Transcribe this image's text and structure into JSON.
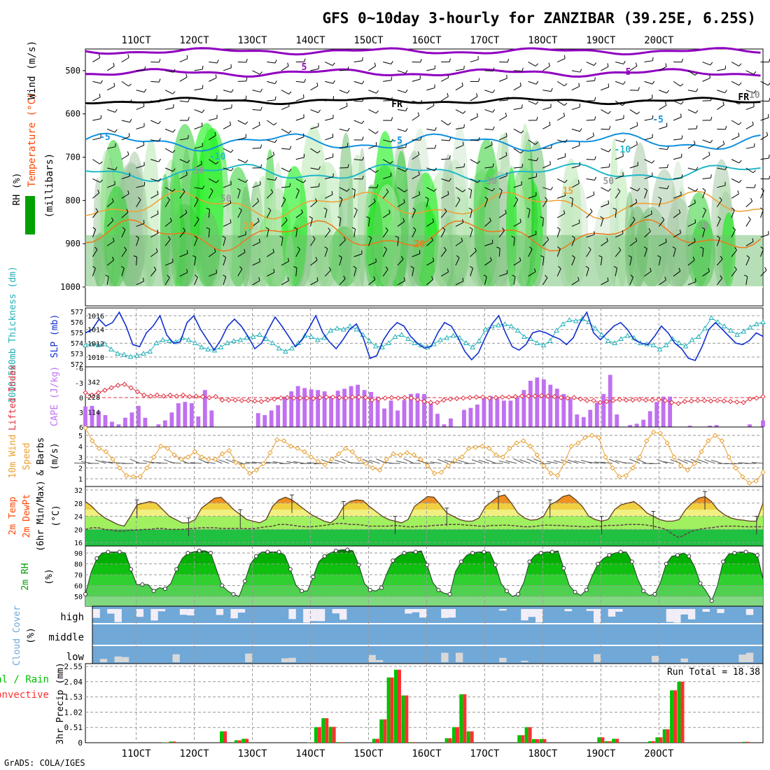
{
  "title": "GFS 0~10day 3-hourly for ZANZIBAR (39.25E, 6.25S)",
  "credit": "GrADS: COLA/IGES",
  "colors": {
    "axis": "#000000",
    "grid": "#9a9a9a",
    "temp_label": "#ff4400",
    "wind_label": "#ffa500",
    "rh_label": "#00a000",
    "slp": "#1030d0",
    "thickness": "#20b0b8",
    "lifted": "#e03040",
    "cape": "#c070f0",
    "wind_speed": "#e8a030",
    "cloud": "#70a8d8",
    "precip_total": "#00c000",
    "precip_conv": "#ff3030",
    "rh_dark": "#00a000",
    "rh_light": "#b8e8b0",
    "purple": "#9000c0",
    "iso_blue": "#1090e0",
    "iso_cyan": "#20b8c8",
    "iso_orange": "#f0a030",
    "iso_orange2": "#f07818",
    "magenta": "#e0208a"
  },
  "time_labels": [
    "11OCT",
    "12OCT",
    "13OCT",
    "14OCT",
    "15OCT",
    "16OCT",
    "17OCT",
    "18OCT",
    "19OCT",
    "20OCT"
  ],
  "chart_data": [
    {
      "name": "upper-air",
      "type": "heatmap",
      "ylabel": "(millibars)",
      "side_labels": {
        "rh": "RH (%)",
        "temperature": "Temperature (°C)",
        "wind": "Wind (m/s)"
      },
      "yticks": [
        500,
        600,
        700,
        800,
        900,
        1000
      ],
      "ylim": [
        450,
        1000
      ],
      "contour_labels": [
        "5",
        "5",
        "FR",
        "FR",
        "-5",
        "-5",
        "-5",
        "-10",
        "-10",
        "10",
        "15",
        "20",
        "50",
        "50",
        "30",
        "30",
        "30",
        "10"
      ]
    },
    {
      "name": "slp-thickness",
      "type": "line",
      "ylabel_left": "1000-500mb Thickness (dm)",
      "ylabel_right": "SLP (mb)",
      "left_ticks": [
        "577",
        "576",
        "575",
        "574",
        "573",
        "572"
      ],
      "right_ticks": [
        "1016",
        "1014",
        "1012",
        "1010"
      ],
      "slp": [
        1013.5,
        1014.0,
        1015.5,
        1014.5,
        1015.0,
        1016.5,
        1014.5,
        1011.8,
        1011.5,
        1013.5,
        1014.5,
        1016.0,
        1013.2,
        1012.0,
        1012.2,
        1015.0,
        1016.0,
        1014.0,
        1012.5,
        1011.0,
        1012.5,
        1014.5,
        1015.5,
        1014.5,
        1013.0,
        1011.2,
        1012.0,
        1014.0,
        1015.8,
        1014.5,
        1013.0,
        1011.5,
        1012.5,
        1014.2,
        1016.0,
        1013.6,
        1012.2,
        1011.2,
        1012.5,
        1014.0,
        1014.8,
        1012.8,
        1009.8,
        1010.2,
        1012.5,
        1014.0,
        1015.0,
        1014.5,
        1013.0,
        1012.0,
        1011.3,
        1011.5,
        1013.5,
        1015.0,
        1014.5,
        1012.8,
        1010.8,
        1009.6,
        1010.6,
        1012.8,
        1014.8,
        1016.0,
        1013.5,
        1011.5,
        1011.0,
        1011.8,
        1013.5,
        1013.8,
        1013.5,
        1013.0,
        1012.6,
        1011.8,
        1012.8,
        1015.0,
        1016.5,
        1013.5,
        1012.5,
        1013.5,
        1014.5,
        1015.0,
        1014.0,
        1012.5,
        1012.0,
        1011.8,
        1013.0,
        1014.5,
        1013.5,
        1012.0,
        1011.2,
        1009.8,
        1009.5,
        1011.5,
        1014.0,
        1015.0,
        1014.0,
        1013.0,
        1012.0,
        1011.8,
        1012.4,
        1013.5,
        1013.0
      ],
      "thickness": [
        573.8,
        573.9,
        573.8,
        573.9,
        573.4,
        573.0,
        572.9,
        572.7,
        572.8,
        573.0,
        573.2,
        574.0,
        574.3,
        574.2,
        574.1,
        574.5,
        574.3,
        574.0,
        573.6,
        573.4,
        573.3,
        573.6,
        574.0,
        574.2,
        574.3,
        574.5,
        574.6,
        574.8,
        574.4,
        574.0,
        573.5,
        573.2,
        573.5,
        574.0,
        574.7,
        574.6,
        574.3,
        574.5,
        575.2,
        575.4,
        575.3,
        575.6,
        575.3,
        574.8,
        574.2,
        573.7,
        573.6,
        574.0,
        574.6,
        574.8,
        574.4,
        574.0,
        573.8,
        573.6,
        573.9,
        574.3,
        574.5,
        574.7,
        574.5,
        574.0,
        573.6,
        574.2,
        575.3,
        575.6,
        575.7,
        575.8,
        575.6,
        575.2,
        574.6,
        574.4,
        574.0,
        573.8,
        574.2,
        575.2,
        575.8,
        576.2,
        576.1,
        576.3,
        576.0,
        575.4,
        574.8,
        574.2,
        574.0,
        574.4,
        574.7,
        574.5,
        574.0,
        573.9,
        573.8,
        573.4,
        573.8,
        574.4,
        574.0,
        573.7,
        574.3,
        574.6,
        575.4,
        576.4,
        576.0,
        575.6,
        575.2,
        574.8,
        575.1,
        575.5,
        575.8,
        576.0
      ]
    },
    {
      "name": "lifted-cape",
      "type": "bar",
      "ylabel_left": "Lifted Index",
      "ylabel_right": "CAPE (J/kg)",
      "left_ticks": [
        "-6",
        "-3",
        "0",
        "3",
        "6"
      ],
      "right_ticks": [
        "342",
        "228",
        "114"
      ],
      "cape": [
        155,
        160,
        120,
        90,
        40,
        20,
        70,
        110,
        160,
        70,
        0,
        20,
        50,
        110,
        180,
        190,
        180,
        80,
        280,
        125,
        0,
        0,
        0,
        0,
        0,
        0,
        105,
        90,
        125,
        165,
        230,
        270,
        310,
        295,
        285,
        280,
        270,
        235,
        275,
        290,
        310,
        320,
        280,
        265,
        230,
        140,
        200,
        125,
        205,
        250,
        255,
        250,
        190,
        100,
        20,
        65,
        0,
        130,
        145,
        170,
        220,
        235,
        220,
        200,
        200,
        225,
        280,
        350,
        375,
        360,
        320,
        290,
        250,
        215,
        95,
        75,
        130,
        185,
        250,
        395,
        95,
        0,
        15,
        25,
        55,
        120,
        190,
        230,
        230,
        0,
        0,
        10,
        0,
        0,
        10,
        15,
        0,
        0,
        0,
        0,
        20,
        0,
        50
      ],
      "lifted": [
        -1.0,
        -0.5,
        -1.0,
        -1.5,
        -2.0,
        -2.5,
        -2.7,
        -2.0,
        -1.2,
        -0.5,
        -0.3,
        -0.5,
        -0.3,
        -0.5,
        -0.3,
        -0.5,
        -0.2,
        -0.3,
        -0.2,
        0.0,
        -0.2,
        0.5,
        0.5,
        0.5,
        0.6,
        0.6,
        0.7,
        0.8,
        0.5,
        0.3,
        0.1,
        0.0,
        0.1,
        0.1,
        0.1,
        0.2,
        0.0,
        -0.1,
        -0.1,
        0.0,
        0.1,
        -0.1,
        -0.1,
        0.0,
        0.5,
        0.3,
        0.1,
        0.0,
        0.1,
        0.0,
        0.1,
        0.4,
        0.8,
        1.0,
        1.0,
        0.5,
        0.3,
        0.2,
        0.1,
        0.0,
        -0.1,
        -0.1,
        0.1,
        0.0,
        -0.1,
        -0.1,
        -0.2,
        -0.3,
        -0.3,
        -0.3,
        -0.4,
        -0.3,
        -0.2,
        0.0,
        0.1,
        0.0,
        0.3,
        0.6,
        0.6,
        1.0,
        0.8,
        0.6,
        0.4,
        0.5,
        0.5,
        0.4,
        0.5,
        0.5,
        0.4,
        0.6,
        1.0,
        1.2,
        0.8,
        0.7,
        0.6,
        0.6,
        0.7,
        0.6,
        0.7,
        0.8,
        0.9,
        1.0,
        0.3,
        0.1,
        -0.2
      ]
    },
    {
      "name": "wind-10m",
      "type": "line",
      "ylabel": "10m Wind Speed & Barbs (m/s)",
      "ticks": [
        "5",
        "4",
        "3",
        "2",
        "1"
      ],
      "values": [
        5.7,
        4.5,
        3.8,
        3.5,
        2.8,
        2.0,
        1.3,
        1.2,
        1.2,
        2.0,
        3.0,
        4.0,
        3.8,
        3.2,
        2.8,
        3.0,
        3.5,
        3.0,
        2.8,
        2.8,
        3.3,
        3.6,
        2.5,
        2.2,
        1.5,
        1.8,
        2.4,
        3.4,
        4.6,
        4.5,
        4.0,
        3.8,
        3.5,
        3.0,
        2.6,
        2.3,
        2.8,
        3.3,
        3.8,
        3.5,
        2.8,
        2.4,
        2.0,
        1.8,
        2.8,
        3.3,
        3.2,
        3.4,
        3.2,
        2.8,
        2.2,
        1.5,
        1.6,
        2.2,
        2.7,
        3.0,
        3.8,
        3.9,
        4.0,
        3.8,
        3.2,
        3.0,
        3.8,
        4.3,
        4.5,
        4.0,
        3.2,
        2.2,
        1.5,
        1.3,
        2.5,
        4.0,
        4.3,
        4.8,
        5.0,
        4.8,
        3.0,
        2.0,
        1.2,
        1.3,
        2.0,
        3.0,
        4.5,
        5.3,
        5.2,
        4.3,
        3.0,
        2.2,
        1.8,
        2.4,
        3.5,
        4.5,
        5.0,
        4.5,
        3.0,
        2.0,
        1.2,
        0.6,
        0.8,
        1.6
      ]
    },
    {
      "name": "temperature-2m",
      "type": "area",
      "ylabel": "2m Temp 2m DewPt (6hr Min/Max) (°C)",
      "ticks": [
        "32",
        "28",
        "24",
        "20",
        "16"
      ],
      "temp": [
        28.5,
        27.0,
        25.0,
        23.5,
        22.5,
        21.5,
        21.0,
        24.0,
        27.5,
        28.0,
        28.5,
        28.0,
        26.0,
        24.0,
        23.0,
        22.0,
        22.0,
        23.0,
        26.5,
        28.0,
        29.5,
        29.8,
        28.0,
        26.0,
        24.5,
        23.0,
        22.5,
        22.0,
        23.0,
        27.0,
        29.0,
        29.8,
        29.0,
        27.5,
        26.0,
        24.5,
        23.5,
        22.5,
        22.0,
        23.5,
        27.0,
        28.5,
        29.0,
        28.8,
        27.0,
        25.5,
        24.0,
        23.0,
        22.5,
        22.0,
        23.0,
        27.0,
        28.5,
        30.0,
        29.8,
        27.5,
        25.0,
        24.0,
        23.0,
        22.5,
        22.5,
        23.5,
        27.0,
        28.5,
        30.0,
        30.5,
        28.0,
        25.0,
        23.5,
        22.8,
        23.0,
        24.0,
        27.5,
        28.5,
        30.0,
        30.5,
        29.0,
        27.0,
        24.0,
        23.0,
        22.5,
        23.0,
        26.0,
        27.5,
        28.0,
        28.5,
        27.0,
        25.0,
        24.0,
        23.0,
        22.5,
        22.5,
        23.0,
        26.0,
        28.0,
        29.5,
        30.0,
        28.5,
        26.0,
        24.5,
        23.5,
        23.0,
        22.8,
        22.5,
        22.5,
        28.0
      ],
      "dewpoint": [
        20.0,
        20.5,
        20.5,
        20.0,
        19.8,
        19.5,
        19.5,
        19.8,
        19.8,
        20.0,
        20.0,
        20.3,
        20.3,
        20.0,
        20.0,
        20.0,
        20.2,
        20.3,
        20.5,
        20.5,
        20.5,
        20.3,
        20.3,
        20.3,
        20.3,
        20.2,
        20.2,
        20.5,
        20.8,
        21.0,
        21.5,
        21.5,
        21.3,
        21.0,
        20.8,
        20.8,
        21.0,
        21.2,
        21.5,
        21.8,
        21.8,
        21.5,
        21.5,
        21.3,
        21.0,
        21.0,
        21.0,
        21.0,
        21.2,
        21.0,
        20.8,
        20.8,
        21.0,
        21.0,
        21.2,
        21.3,
        21.5,
        21.5,
        21.5,
        21.3,
        21.2,
        21.0,
        21.0,
        21.2,
        21.2,
        21.3,
        21.2,
        21.0,
        20.8,
        20.8,
        21.0,
        21.3,
        21.3,
        21.2,
        21.2,
        21.0,
        21.0,
        20.8,
        20.8,
        21.0,
        21.0,
        21.2,
        21.2,
        21.3,
        21.5,
        21.5,
        21.5,
        21.3,
        21.0,
        20.5,
        20.0,
        18.5,
        17.5,
        18.5,
        19.5,
        20.0,
        20.3,
        20.5,
        20.8,
        21.0,
        21.0,
        21.0,
        20.8,
        20.8,
        20.8,
        20.8
      ]
    },
    {
      "name": "rh-2m",
      "type": "area",
      "ylabel": "2m RH (%)",
      "ticks": [
        "90",
        "80",
        "70",
        "60",
        "50"
      ],
      "values": [
        52,
        72,
        85,
        90,
        91,
        91,
        91,
        90,
        75,
        61,
        61,
        61,
        55,
        58,
        57,
        62,
        75,
        85,
        90,
        91,
        92,
        92,
        90,
        75,
        60,
        55,
        52,
        50,
        64,
        80,
        87,
        91,
        91,
        91,
        91,
        88,
        75,
        60,
        55,
        55,
        68,
        82,
        87,
        90,
        92,
        93,
        93,
        92,
        79,
        62,
        56,
        55,
        58,
        72,
        83,
        87,
        90,
        91,
        91,
        92,
        79,
        63,
        56,
        53,
        52,
        73,
        82,
        88,
        90,
        91,
        91,
        91,
        79,
        62,
        55,
        50,
        52,
        63,
        82,
        88,
        90,
        91,
        91,
        92,
        76,
        60,
        54,
        51,
        56,
        69,
        80,
        85,
        88,
        90,
        91,
        91,
        82,
        66,
        55,
        51,
        52,
        63,
        80,
        87,
        88,
        90,
        87,
        77,
        62,
        55,
        46,
        60,
        82,
        89,
        90,
        91,
        91,
        90,
        88,
        66
      ]
    },
    {
      "name": "cloud-cover",
      "type": "bar",
      "ylabel": "Cloud Cover (%)",
      "levels": [
        "high",
        "middle",
        "low"
      ]
    },
    {
      "name": "precip-3hr",
      "type": "bar",
      "ylabel": "3hr Precip (mm)",
      "side_label_total": "Total / Rain",
      "side_label_conv": "Convective",
      "ticks": [
        "2.55",
        "2.04",
        "1.53",
        "1.02",
        "0.51",
        "0"
      ],
      "ylim": [
        0,
        2.55
      ],
      "run_total_label": "Run Total = 18.38",
      "values": [
        0,
        0,
        0,
        0,
        0,
        0,
        0,
        0,
        0,
        0.01,
        0.02,
        0,
        0,
        0,
        0,
        0,
        0,
        0.08,
        0.04,
        0,
        0.03,
        0,
        0,
        0,
        0,
        0,
        0,
        0,
        0,
        0,
        0,
        0,
        0.07,
        0.08,
        0,
        0,
        0.03,
        0,
        0,
        0,
        0.01,
        0.05,
        0.14,
        0.17,
        0.09,
        0.01,
        0,
        0,
        0,
        0,
        0,
        0,
        0.05,
        0.04,
        0.07,
        0.07,
        0.02,
        0,
        0,
        0,
        0,
        0,
        0,
        0,
        0,
        0,
        0.1,
        0.06,
        0.07,
        0.05,
        0.06,
        0.06,
        0,
        0,
        0,
        0,
        0,
        0,
        0,
        0,
        0,
        0.02,
        0.04,
        0.04,
        0.02,
        0.06,
        0.08,
        0.06,
        0.18,
        0.22,
        0.25,
        0.27,
        0.19,
        0.04,
        0.02,
        0.01,
        0,
        0,
        0,
        0,
        0,
        0,
        0.01,
        0.01,
        0
      ],
      "bars": [
        {
          "hour": 33,
          "v": 0.01
        },
        {
          "hour": 36,
          "v": 0.04
        },
        {
          "hour": 57,
          "v": 0.38
        },
        {
          "hour": 63,
          "v": 0.08
        },
        {
          "hour": 66,
          "v": 0.13
        },
        {
          "hour": 93,
          "v": 0.01
        },
        {
          "hour": 96,
          "v": 0.52
        },
        {
          "hour": 99,
          "v": 0.82
        },
        {
          "hour": 102,
          "v": 0.53
        },
        {
          "hour": 105,
          "v": 0.02
        },
        {
          "hour": 120,
          "v": 0.13
        },
        {
          "hour": 123,
          "v": 0.78
        },
        {
          "hour": 126,
          "v": 2.18
        },
        {
          "hour": 129,
          "v": 2.44
        },
        {
          "hour": 132,
          "v": 1.58
        },
        {
          "hour": 135,
          "v": 0.02
        },
        {
          "hour": 150,
          "v": 0.15
        },
        {
          "hour": 153,
          "v": 0.52
        },
        {
          "hour": 156,
          "v": 1.62
        },
        {
          "hour": 159,
          "v": 0.38
        },
        {
          "hour": 180,
          "v": 0.25
        },
        {
          "hour": 183,
          "v": 0.52
        },
        {
          "hour": 186,
          "v": 0.12
        },
        {
          "hour": 189,
          "v": 0.12
        },
        {
          "hour": 213,
          "v": 0.18
        },
        {
          "hour": 216,
          "v": 0.05
        },
        {
          "hour": 219,
          "v": 0.13
        },
        {
          "hour": 234,
          "v": 0.05
        },
        {
          "hour": 237,
          "v": 0.18
        },
        {
          "hour": 240,
          "v": 0.45
        },
        {
          "hour": 243,
          "v": 1.75
        },
        {
          "hour": 246,
          "v": 2.04
        },
        {
          "hour": 273,
          "v": 0.03
        }
      ]
    }
  ]
}
